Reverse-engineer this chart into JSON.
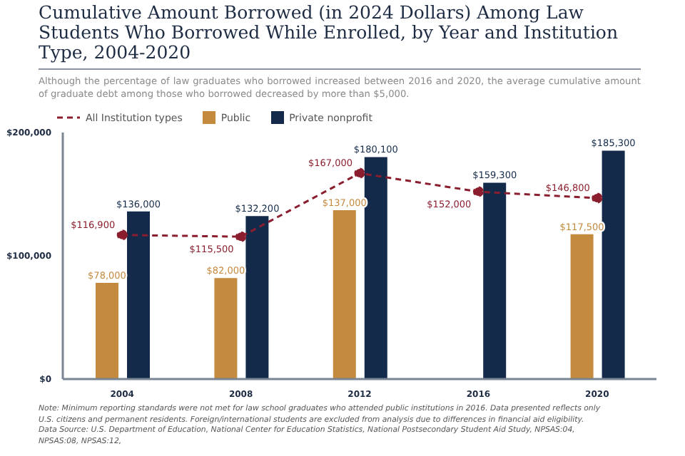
{
  "chart_data": {
    "type": "bar",
    "title": "Cumulative Amount Borrowed (in 2024 Dollars) Among Law Students Who Borrowed While Enrolled, by Year and Institution Type, 2004-2020",
    "subtitle": "Although the percentage of law graduates who borrowed increased between 2016 and 2020, the average cumulative amount of graduate debt among those who borrowed decreased by more than $5,000.",
    "categories": [
      "2004",
      "2008",
      "2012",
      "2016",
      "2020"
    ],
    "series": [
      {
        "name": "All Institution types",
        "type": "line",
        "color": "#8b1e2e",
        "line_style": "dashed",
        "marker": "circle",
        "values": [
          116900,
          115500,
          167000,
          152000,
          146800
        ],
        "value_labels": [
          "$116,900",
          "$115,500",
          "$167,000",
          "$152,000",
          "$146,800"
        ]
      },
      {
        "name": "Public",
        "color": "#c48a3e",
        "values": [
          78000,
          82000,
          137000,
          null,
          117500
        ],
        "value_labels": [
          "$78,000",
          "$82,000",
          "$137,000",
          null,
          "$117,500"
        ]
      },
      {
        "name": "Private nonprofit",
        "color": "#132a4a",
        "values": [
          136000,
          132200,
          180100,
          159300,
          185300
        ],
        "value_labels": [
          "$136,000",
          "$132,200",
          "$180,100",
          "$159,300",
          "$185,300"
        ]
      }
    ],
    "ylim": [
      0,
      200000
    ],
    "yticks": [
      {
        "value": 0,
        "label": "$0"
      },
      {
        "value": 100000,
        "label": "$100,000"
      },
      {
        "value": 200000,
        "label": "$200,000"
      }
    ],
    "grid": false,
    "legend": "top left",
    "annotations": [
      "Note: Minimum reporting standards were not met for law school graduates who attended public institutions in 2016. Data presented reflects only U.S. citizens and permanent residents. Foreign/international students are excluded from analysis due to differences in financial aid eligibility.",
      "Data Source: U.S. Department of Education, National Center for Education Statistics, National Postsecondary Student Aid Study, NPSAS:04, NPSAS:08, NPSAS:12,"
    ]
  }
}
